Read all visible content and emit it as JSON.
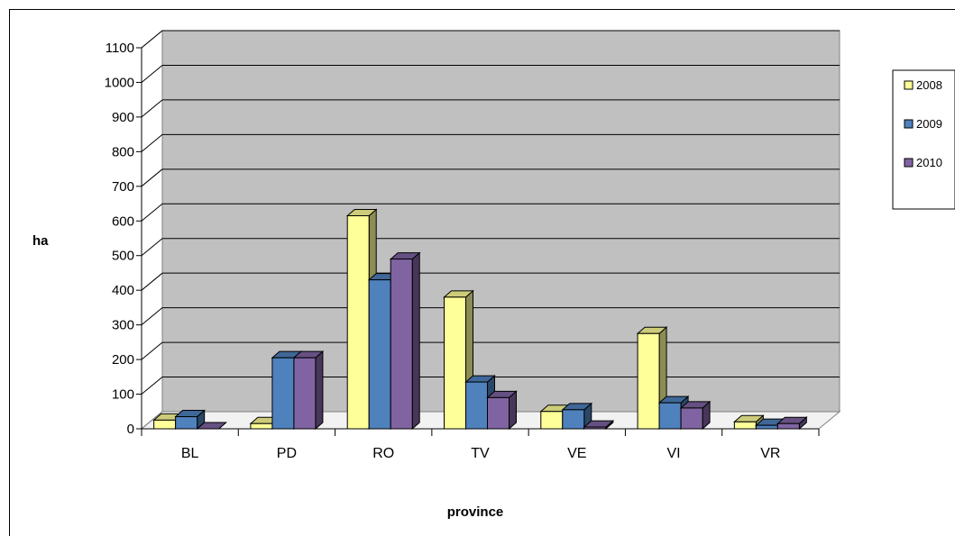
{
  "chart_data": {
    "type": "bar",
    "categories": [
      "BL",
      "PD",
      "RO",
      "TV",
      "VE",
      "VI",
      "VR"
    ],
    "series": [
      {
        "name": "2008",
        "values": [
          25,
          15,
          615,
          380,
          50,
          275,
          20
        ]
      },
      {
        "name": "2009",
        "values": [
          35,
          205,
          430,
          135,
          55,
          75,
          10
        ]
      },
      {
        "name": "2010",
        "values": [
          0,
          205,
          490,
          90,
          5,
          60,
          15
        ]
      }
    ],
    "xlabel": "province",
    "ylabel": "ha",
    "ylim": [
      0,
      1100
    ],
    "yticks": [
      0,
      100,
      200,
      300,
      400,
      500,
      600,
      700,
      800,
      900,
      1000,
      1100
    ],
    "grid": true,
    "legend_position": "right",
    "colors": {
      "2008": "#ffff99",
      "2009": "#4f81bd",
      "2010": "#8064a2",
      "plot_back": "#c0c0c0",
      "floor": "#f2f2f2"
    }
  }
}
